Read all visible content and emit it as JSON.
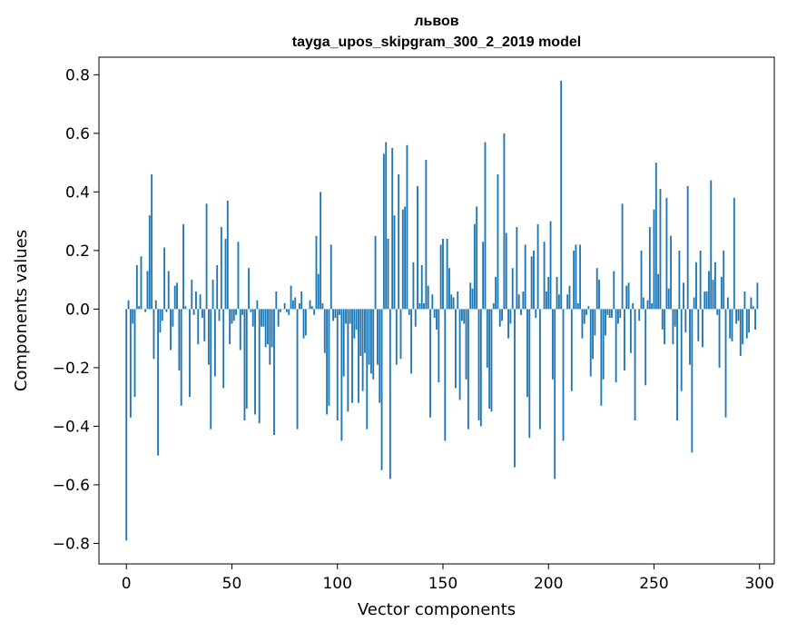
{
  "chart_data": {
    "type": "bar",
    "title_line1": "львов",
    "title_line2": "tayga_upos_skipgram_300_2_2019 model",
    "xlabel": "Vector components",
    "ylabel": "Components values",
    "xlim": [
      -13,
      307
    ],
    "ylim": [
      -0.87,
      0.86
    ],
    "xticks": [
      0,
      50,
      100,
      150,
      200,
      250,
      300
    ],
    "yticks": [
      -0.8,
      -0.6,
      -0.4,
      -0.2,
      0.0,
      0.2,
      0.4,
      0.6,
      0.8
    ],
    "xtick_labels": [
      "0",
      "50",
      "100",
      "150",
      "200",
      "250",
      "300"
    ],
    "ytick_labels": [
      "−0.8",
      "−0.6",
      "−0.4",
      "−0.2",
      "0.0",
      "0.2",
      "0.4",
      "0.6",
      "0.8"
    ],
    "bar_color": "#1f77b4",
    "values": [
      -0.79,
      0.03,
      -0.37,
      -0.05,
      -0.3,
      0.15,
      0.01,
      0.18,
      0.0,
      -0.01,
      0.13,
      0.32,
      0.46,
      -0.17,
      0.03,
      -0.5,
      -0.08,
      -0.04,
      0.21,
      -0.01,
      0.13,
      -0.14,
      -0.06,
      0.08,
      0.09,
      -0.21,
      -0.33,
      0.29,
      0.01,
      0.0,
      -0.3,
      0.1,
      -0.02,
      0.06,
      -0.12,
      0.05,
      -0.03,
      -0.11,
      0.36,
      -0.19,
      -0.41,
      0.1,
      -0.23,
      0.15,
      -0.04,
      0.28,
      -0.27,
      0.24,
      0.37,
      -0.12,
      -0.05,
      -0.04,
      -0.02,
      0.23,
      -0.14,
      -0.02,
      -0.38,
      -0.34,
      0.14,
      -0.01,
      -0.06,
      -0.36,
      0.03,
      -0.39,
      -0.06,
      -0.06,
      -0.13,
      -0.12,
      -0.19,
      -0.13,
      -0.43,
      0.06,
      -0.06,
      -0.01,
      0.0,
      0.02,
      -0.01,
      -0.02,
      0.08,
      0.03,
      0.04,
      -0.41,
      0.02,
      0.06,
      -0.1,
      -0.09,
      0.0,
      0.03,
      0.01,
      -0.02,
      0.25,
      0.12,
      0.4,
      0.02,
      -0.15,
      -0.36,
      -0.33,
      0.22,
      -0.04,
      -0.03,
      -0.38,
      -0.02,
      -0.45,
      -0.23,
      -0.05,
      -0.35,
      -0.05,
      -0.32,
      -0.1,
      -0.07,
      -0.32,
      -0.16,
      -0.28,
      -0.15,
      -0.41,
      -0.19,
      -0.22,
      -0.24,
      0.25,
      -0.19,
      -0.32,
      -0.55,
      0.53,
      0.57,
      0.24,
      -0.58,
      0.55,
      0.32,
      -0.19,
      0.46,
      -0.17,
      0.34,
      0.35,
      0.56,
      -0.02,
      -0.22,
      0.16,
      -0.06,
      0.42,
      0.02,
      0.15,
      0.02,
      0.51,
      0.08,
      -0.37,
      0.05,
      -0.03,
      -0.07,
      -0.25,
      0.22,
      0.24,
      -0.45,
      0.24,
      0.14,
      0.05,
      0.04,
      -0.27,
      0.06,
      -0.31,
      -0.04,
      -0.05,
      -0.24,
      -0.41,
      0.09,
      0.07,
      0.29,
      0.35,
      -0.38,
      -0.4,
      0.23,
      0.57,
      -0.2,
      -0.34,
      -0.35,
      0.02,
      0.11,
      0.46,
      -0.06,
      -0.04,
      0.6,
      0.26,
      -0.1,
      -0.05,
      0.14,
      -0.54,
      0.28,
      0.05,
      -0.02,
      0.06,
      0.22,
      -0.3,
      -0.44,
      0.18,
      0.2,
      -0.03,
      0.29,
      -0.41,
      0.0,
      0.23,
      0.06,
      0.11,
      0.3,
      -0.24,
      -0.58,
      0.11,
      0.05,
      0.78,
      -0.45,
      0.0,
      0.05,
      0.08,
      -0.28,
      0.2,
      0.22,
      0.02,
      0.22,
      -0.1,
      -0.05,
      -0.02,
      0.01,
      -0.23,
      -0.17,
      -0.09,
      0.14,
      0.1,
      -0.33,
      -0.24,
      -0.09,
      -0.02,
      -0.03,
      -0.03,
      0.13,
      -0.25,
      -0.05,
      -0.03,
      0.36,
      -0.21,
      0.08,
      0.09,
      -0.15,
      0.02,
      -0.38,
      0.0,
      -0.04,
      0.2,
      0.04,
      -0.26,
      0.03,
      0.28,
      0.02,
      0.34,
      0.5,
      0.12,
      0.41,
      -0.07,
      -0.12,
      0.38,
      0.07,
      0.25,
      -0.12,
      -0.06,
      -0.38,
      0.2,
      -0.28,
      0.09,
      -0.08,
      0.42,
      -0.19,
      -0.49,
      0.04,
      0.16,
      -0.11,
      0.2,
      -0.13,
      0.06,
      0.06,
      0.13,
      0.44,
      0.1,
      0.16,
      -0.02,
      -0.2,
      0.11,
      0.2,
      -0.37,
      0.04,
      -0.1,
      -0.11,
      0.38,
      -0.05,
      -0.04,
      -0.16,
      -0.12,
      0.06,
      -0.1,
      -0.08,
      0.04,
      0.01,
      -0.07,
      0.09
    ]
  }
}
